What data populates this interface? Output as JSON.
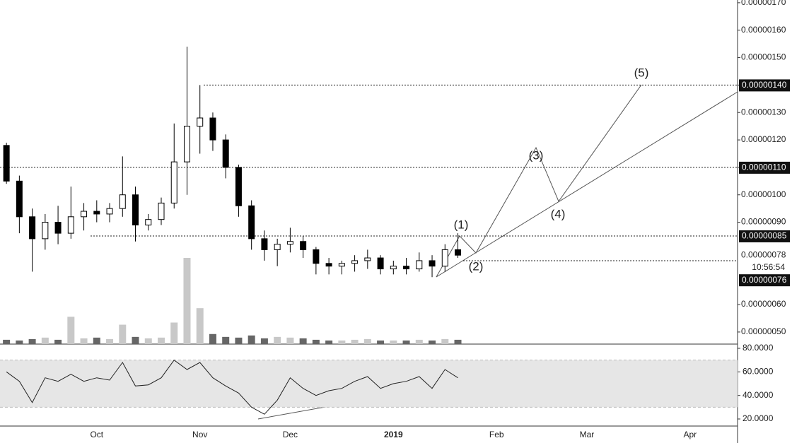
{
  "chart_data": {
    "type": "candlestick",
    "categories": [
      null,
      null,
      null,
      null,
      null,
      null,
      null,
      "Oct",
      null,
      null,
      null,
      null,
      null,
      null,
      null,
      "Nov",
      null,
      null,
      null,
      null,
      null,
      null,
      "Dec",
      null,
      null,
      null,
      null,
      null,
      null,
      null,
      "2019",
      null,
      null,
      null,
      null,
      null,
      null,
      null,
      "Feb",
      null,
      null,
      null,
      null,
      null,
      null,
      "Mar",
      null,
      null,
      null,
      null,
      null,
      null,
      null,
      "Apr",
      null,
      null,
      null
    ],
    "open": [
      1.18e-06,
      1.05e-06,
      9.2e-07,
      8.4e-07,
      9e-07,
      8.6e-07,
      9.2e-07,
      9.4e-07,
      9.3e-07,
      9.5e-07,
      1e-06,
      8.9e-07,
      9.1e-07,
      9.7e-07,
      1.12e-06,
      1.25e-06,
      1.28e-06,
      1.2e-06,
      1.1e-06,
      9.6e-07,
      8.4e-07,
      8e-07,
      8.2e-07,
      8.3e-07,
      8e-07,
      7.5e-07,
      7.4e-07,
      7.5e-07,
      7.6e-07,
      7.7e-07,
      7.3e-07,
      7.4e-07,
      7.3e-07,
      7.6e-07,
      7.4e-07,
      8e-07,
      null,
      null,
      null,
      null,
      null,
      null,
      null,
      null,
      null,
      null,
      null,
      null,
      null,
      null,
      null,
      null,
      null,
      null,
      null,
      null,
      null
    ],
    "high": [
      1.19e-06,
      1.07e-06,
      9.5e-07,
      9.3e-07,
      9.6e-07,
      1.03e-06,
      9.7e-07,
      9.8e-07,
      9.7e-07,
      1.14e-06,
      1.03e-06,
      9.3e-07,
      9.9e-07,
      1.26e-06,
      1.54e-06,
      1.4e-06,
      1.3e-06,
      1.22e-06,
      1.11e-06,
      9.8e-07,
      8.7e-07,
      8.4e-07,
      8.8e-07,
      8.5e-07,
      8.1e-07,
      7.7e-07,
      7.6e-07,
      7.8e-07,
      8e-07,
      7.8e-07,
      7.6e-07,
      7.7e-07,
      7.9e-07,
      7.8e-07,
      8.2e-07,
      8.6e-07,
      null,
      null,
      null,
      null,
      null,
      null,
      null,
      null,
      null,
      null,
      null,
      null,
      null,
      null,
      null,
      null,
      null,
      null,
      null,
      null,
      null
    ],
    "low": [
      1.04e-06,
      8.6e-07,
      7.2e-07,
      8e-07,
      8.2e-07,
      8.4e-07,
      8.7e-07,
      9e-07,
      9e-07,
      9.2e-07,
      8.3e-07,
      8.7e-07,
      8.9e-07,
      9.5e-07,
      1e-06,
      1.15e-06,
      1.16e-06,
      1.06e-06,
      9.2e-07,
      8e-07,
      7.6e-07,
      7.4e-07,
      7.9e-07,
      7.7e-07,
      7.1e-07,
      7.1e-07,
      7.1e-07,
      7.2e-07,
      7.3e-07,
      7.1e-07,
      7.1e-07,
      7.1e-07,
      7.2e-07,
      7e-07,
      7.2e-07,
      7.7e-07,
      null,
      null,
      null,
      null,
      null,
      null,
      null,
      null,
      null,
      null,
      null,
      null,
      null,
      null,
      null,
      null,
      null,
      null,
      null,
      null,
      null
    ],
    "close": [
      1.05e-06,
      9.2e-07,
      8.4e-07,
      9e-07,
      8.6e-07,
      9.2e-07,
      9.4e-07,
      9.3e-07,
      9.5e-07,
      1e-06,
      8.9e-07,
      9.1e-07,
      9.7e-07,
      1.12e-06,
      1.25e-06,
      1.28e-06,
      1.2e-06,
      1.1e-06,
      9.6e-07,
      8.4e-07,
      8e-07,
      8.2e-07,
      8.3e-07,
      8e-07,
      7.5e-07,
      7.4e-07,
      7.5e-07,
      7.6e-07,
      7.7e-07,
      7.3e-07,
      7.4e-07,
      7.3e-07,
      7.6e-07,
      7.4e-07,
      8e-07,
      7.8e-07,
      null,
      null,
      null,
      null,
      null,
      null,
      null,
      null,
      null,
      null,
      null,
      null,
      null,
      null,
      null,
      null,
      null,
      null,
      null,
      null,
      null
    ],
    "volume": [
      6,
      5,
      7,
      9,
      6,
      38,
      8,
      9,
      7,
      27,
      10,
      8,
      9,
      30,
      120,
      50,
      14,
      10,
      9,
      12,
      8,
      10,
      9,
      8,
      6,
      5,
      5,
      6,
      7,
      5,
      5,
      5,
      6,
      5,
      7,
      6,
      null,
      null,
      null,
      null,
      null,
      null,
      null,
      null,
      null,
      null,
      null,
      null,
      null,
      null,
      null,
      null,
      null,
      null,
      null,
      null,
      null
    ],
    "ylim": [
      4.56e-07,
      1.71e-06
    ],
    "yticks": [
      {
        "value": 1.7e-06,
        "label": "0.00000170"
      },
      {
        "value": 1.6e-06,
        "label": "0.00000160"
      },
      {
        "value": 1.5e-06,
        "label": "0.00000150"
      },
      {
        "value": 1.4e-06,
        "label": "0.00000140"
      },
      {
        "value": 1.3e-06,
        "label": "0.00000130"
      },
      {
        "value": 1.2e-06,
        "label": "0.00000120"
      },
      {
        "value": 1.1e-06,
        "label": "0.00000110"
      },
      {
        "value": 1e-06,
        "label": "0.00000100"
      },
      {
        "value": 9e-07,
        "label": "0.00000090"
      },
      {
        "value": 6e-07,
        "label": "0.00000060"
      },
      {
        "value": 5e-07,
        "label": "0.00000050"
      }
    ],
    "levels": [
      {
        "value": 1.4e-06,
        "label": "0.00000140"
      },
      {
        "value": 1.1e-06,
        "label": "0.00000110"
      },
      {
        "value": 8.5e-07,
        "label": "0.00000085"
      },
      {
        "value": 7.6e-07,
        "label": "0.00000076"
      }
    ],
    "last_price": {
      "value": 7.8e-07,
      "label": "0.00000078"
    },
    "countdown": "10:56:54",
    "wave_labels": [
      "(1)",
      "(2)",
      "(3)",
      "(4)",
      "(5)"
    ],
    "rsi": {
      "values": [
        60,
        52,
        34,
        55,
        52,
        58,
        52,
        55,
        53,
        68,
        48,
        49,
        55,
        70,
        62,
        68,
        55,
        48,
        42,
        30,
        24,
        36,
        55,
        46,
        40,
        44,
        46,
        52,
        56,
        46,
        50,
        52,
        56,
        46,
        62,
        55,
        null,
        null,
        null,
        null,
        null,
        null,
        null,
        null,
        null,
        null,
        null,
        null,
        null,
        null,
        null,
        null,
        null,
        null,
        null,
        null,
        null
      ],
      "ylim": [
        14,
        83.6
      ],
      "yticks": [
        {
          "value": 80,
          "label": "80.0000"
        },
        {
          "value": 60,
          "label": "60.0000"
        },
        {
          "value": 40,
          "label": "40.0000"
        },
        {
          "value": 20,
          "label": "20.0000"
        }
      ],
      "band": [
        30,
        70
      ]
    }
  }
}
